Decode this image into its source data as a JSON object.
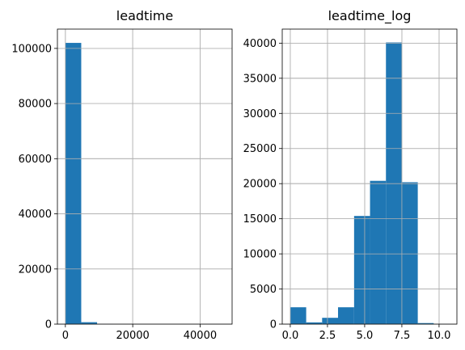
{
  "chart_data": [
    {
      "type": "bar",
      "title": "leadtime",
      "xlabel": "",
      "ylabel": "",
      "xlim": [
        -2360,
        49500
      ],
      "ylim": [
        0,
        107000
      ],
      "xticks": [
        0,
        20000,
        40000
      ],
      "xtick_labels": [
        "0",
        "20000",
        "40000"
      ],
      "yticks": [
        0,
        20000,
        40000,
        60000,
        80000,
        100000
      ],
      "ytick_labels": [
        "0",
        "20000",
        "40000",
        "60000",
        "80000",
        "100000"
      ],
      "grid": true,
      "color": "#1f77b4",
      "bins": [
        {
          "x0": 0,
          "x1": 4710,
          "value": 102000
        },
        {
          "x0": 4710,
          "x1": 9420,
          "value": 700
        },
        {
          "x0": 9420,
          "x1": 14130,
          "value": 30
        },
        {
          "x0": 14130,
          "x1": 18840,
          "value": 10
        },
        {
          "x0": 18840,
          "x1": 23550,
          "value": 5
        },
        {
          "x0": 23550,
          "x1": 28260,
          "value": 3
        },
        {
          "x0": 28260,
          "x1": 32970,
          "value": 2
        },
        {
          "x0": 32970,
          "x1": 37680,
          "value": 1
        },
        {
          "x0": 37680,
          "x1": 42390,
          "value": 1
        },
        {
          "x0": 42390,
          "x1": 47100,
          "value": 1
        }
      ]
    },
    {
      "type": "bar",
      "title": "leadtime_log",
      "xlabel": "",
      "ylabel": "",
      "xlim": [
        -0.54,
        11.2
      ],
      "ylim": [
        0,
        42000
      ],
      "xticks": [
        0.0,
        2.5,
        5.0,
        7.5,
        10.0
      ],
      "xtick_labels": [
        "0.0",
        "2.5",
        "5.0",
        "7.5",
        "10.0"
      ],
      "yticks": [
        0,
        5000,
        10000,
        15000,
        20000,
        25000,
        30000,
        35000,
        40000
      ],
      "ytick_labels": [
        "0",
        "5000",
        "10000",
        "15000",
        "20000",
        "25000",
        "30000",
        "35000",
        "40000"
      ],
      "grid": true,
      "color": "#1f77b4",
      "bins": [
        {
          "x0": 0.0,
          "x1": 1.07,
          "value": 2400
        },
        {
          "x0": 1.07,
          "x1": 2.14,
          "value": 250
        },
        {
          "x0": 2.14,
          "x1": 3.21,
          "value": 900
        },
        {
          "x0": 3.21,
          "x1": 4.29,
          "value": 2400
        },
        {
          "x0": 4.29,
          "x1": 5.36,
          "value": 15400
        },
        {
          "x0": 5.36,
          "x1": 6.43,
          "value": 20400
        },
        {
          "x0": 6.43,
          "x1": 7.5,
          "value": 40100
        },
        {
          "x0": 7.5,
          "x1": 8.57,
          "value": 20200
        },
        {
          "x0": 8.57,
          "x1": 9.64,
          "value": 150
        },
        {
          "x0": 9.64,
          "x1": 10.71,
          "value": 20
        }
      ]
    }
  ]
}
